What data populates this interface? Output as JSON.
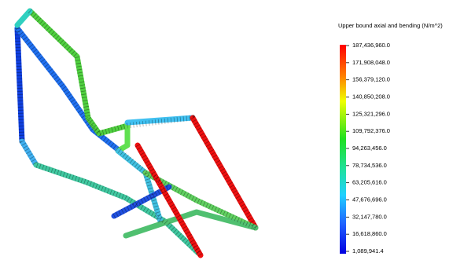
{
  "legend": {
    "title": "Upper bound axial and bending (N/m^2)",
    "ticks": [
      "187,436,960.0",
      "171,908,048.0",
      "156,379,120.0",
      "140,850,208.0",
      "125,321,296.0",
      "109,792,376.0",
      "94,263,456.0",
      "78,734,536.0",
      "63,205,616.0",
      "47,676,696.0",
      "32,147,780.0",
      "16,618,860.0",
      "1,089,941.4"
    ]
  }
}
